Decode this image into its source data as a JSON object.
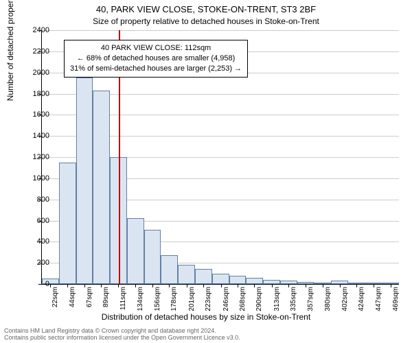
{
  "chart": {
    "type": "histogram",
    "title_main": "40, PARK VIEW CLOSE, STOKE-ON-TRENT, ST3 2BF",
    "title_sub": "Size of property relative to detached houses in Stoke-on-Trent",
    "xlabel": "Distribution of detached houses by size in Stoke-on-Trent",
    "ylabel": "Number of detached properties",
    "background_color": "#ffffff",
    "grid_color": "#cccccc",
    "bar_fill": "#dbe5f1",
    "bar_stroke": "#6080a8",
    "ref_line_color": "#c00000",
    "ref_line_x": 112,
    "x_min": 11,
    "x_max": 480,
    "y_min": 0,
    "y_max": 2400,
    "y_tick_step": 200,
    "x_ticks": [
      22,
      44,
      67,
      89,
      111,
      134,
      156,
      178,
      201,
      223,
      246,
      268,
      290,
      313,
      335,
      357,
      380,
      402,
      424,
      447,
      469
    ],
    "x_tick_suffix": "sqm",
    "bar_width_data": 22.35,
    "bins": [
      {
        "start": 11,
        "count": 55
      },
      {
        "start": 33.35,
        "count": 1150
      },
      {
        "start": 55.7,
        "count": 1950
      },
      {
        "start": 78.05,
        "count": 1830
      },
      {
        "start": 100.4,
        "count": 1200
      },
      {
        "start": 122.75,
        "count": 620
      },
      {
        "start": 145.1,
        "count": 510
      },
      {
        "start": 167.45,
        "count": 270
      },
      {
        "start": 189.8,
        "count": 180
      },
      {
        "start": 212.15,
        "count": 140
      },
      {
        "start": 234.5,
        "count": 100
      },
      {
        "start": 256.85,
        "count": 75
      },
      {
        "start": 279.2,
        "count": 60
      },
      {
        "start": 301.55,
        "count": 40
      },
      {
        "start": 323.9,
        "count": 35
      },
      {
        "start": 346.25,
        "count": 20
      },
      {
        "start": 368.6,
        "count": 15
      },
      {
        "start": 390.95,
        "count": 30
      },
      {
        "start": 413.3,
        "count": 5
      },
      {
        "start": 435.65,
        "count": 5
      },
      {
        "start": 458,
        "count": 5
      }
    ],
    "annotation": {
      "line1": "40 PARK VIEW CLOSE: 112sqm",
      "line2": "← 68% of detached houses are smaller (4,958)",
      "line3": "31% of semi-detached houses are larger (2,253) →"
    },
    "footer_line1": "Contains HM Land Registry data © Crown copyright and database right 2024.",
    "footer_line2": "Contains public sector information licensed under the Open Government Licence v3.0."
  }
}
